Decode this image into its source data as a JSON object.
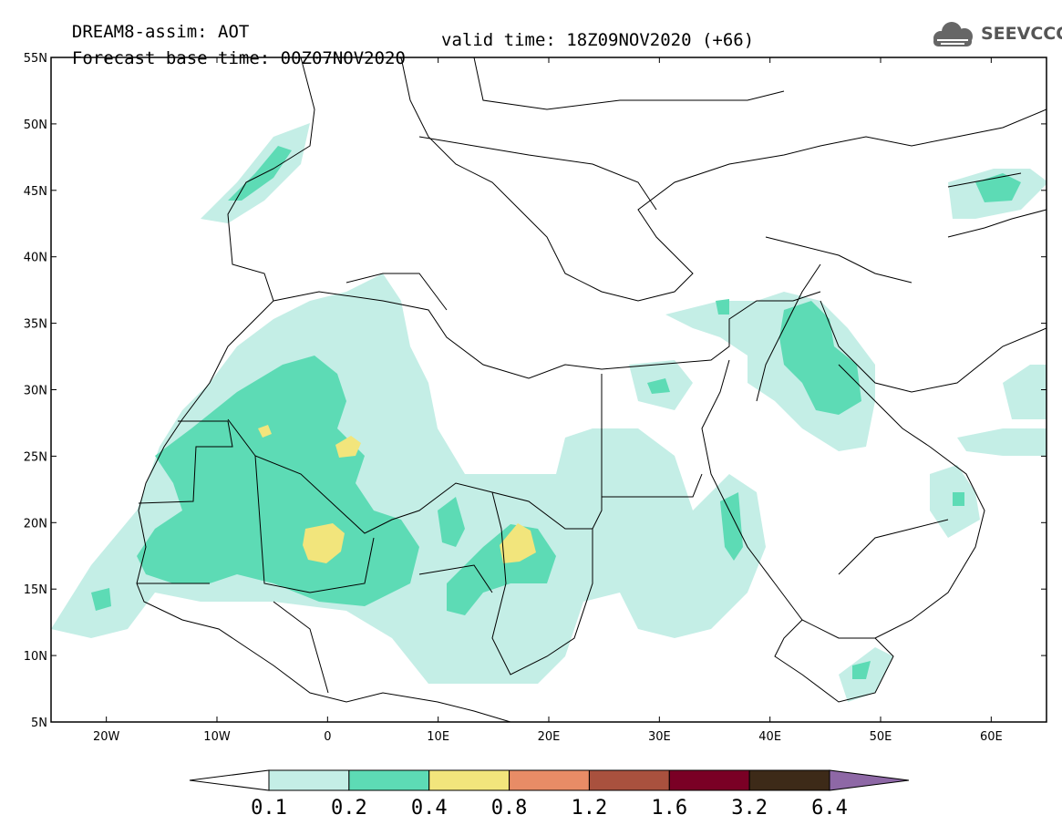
{
  "title": {
    "line1": "DREAM8-assim: AOT",
    "base_time": "Forecast base time: 00Z07NOV2020",
    "valid_time": "valid time: 18Z09NOV2020 (+66)"
  },
  "logo": {
    "text": "SEEVCCC",
    "icon": "cloud-icon"
  },
  "axes": {
    "lat_labels": [
      "55N",
      "50N",
      "45N",
      "40N",
      "35N",
      "30N",
      "25N",
      "20N",
      "15N",
      "10N",
      "5N"
    ],
    "lon_labels": [
      "20W",
      "10W",
      "0",
      "10E",
      "20E",
      "30E",
      "40E",
      "50E",
      "60E"
    ],
    "lat_range": [
      5,
      55
    ],
    "lon_range": [
      -25,
      65
    ]
  },
  "colorbar": {
    "levels": [
      "0.1",
      "0.2",
      "0.4",
      "0.8",
      "1.2",
      "1.6",
      "3.2",
      "6.4"
    ],
    "colors": [
      "#c4eee6",
      "#5ddbb5",
      "#f2e57c",
      "#e88c66",
      "#a9513e",
      "#7a0025",
      "#3d2a18",
      "#8e68a6"
    ],
    "under_color": "#ffffff"
  },
  "map": {
    "plume_colors": {
      "light": "#c4eee6",
      "medium": "#5ddbb5",
      "high": "#f2e57c"
    }
  }
}
